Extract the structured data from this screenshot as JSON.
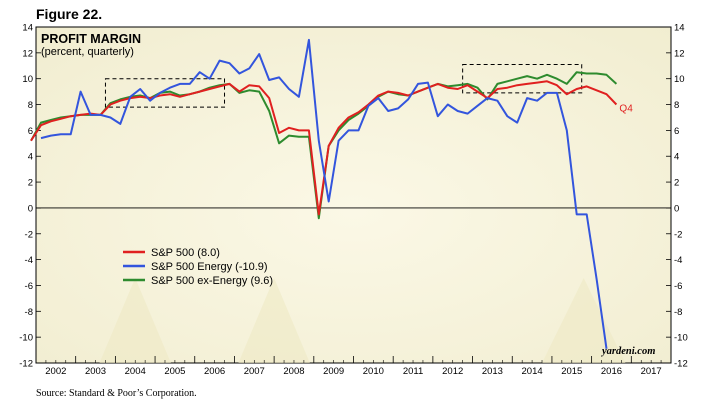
{
  "figure_label": "Figure 22.",
  "source": "Source: Standard & Poor’s Corporation.",
  "credit": "yardeni.com",
  "chart_data": {
    "type": "line",
    "title": "PROFIT MARGIN",
    "subtitle": "(percent, quarterly)",
    "xlim": [
      2002,
      2018
    ],
    "ylim": [
      -12,
      14
    ],
    "y_ticks": [
      -12,
      -10,
      -8,
      -6,
      -4,
      -2,
      0,
      2,
      4,
      6,
      8,
      10,
      12,
      14
    ],
    "x_tick_labels": [
      "2002",
      "2003",
      "2004",
      "2005",
      "2006",
      "2007",
      "2008",
      "2009",
      "2010",
      "2011",
      "2012",
      "2013",
      "2014",
      "2015",
      "2016",
      "2017"
    ],
    "grid": false,
    "zero_line": true,
    "legend_position": "lower-left",
    "end_label": "Q4",
    "series": [
      {
        "name": "S&P 500 (8.0)",
        "color": "#e02020",
        "start": 2001.875,
        "values": [
          5.2,
          6.4,
          6.7,
          6.9,
          7.1,
          7.2,
          7.3,
          7.2,
          8.0,
          8.3,
          8.5,
          8.6,
          8.5,
          8.7,
          8.8,
          8.6,
          8.8,
          9.0,
          9.2,
          9.4,
          9.6,
          9.0,
          9.5,
          9.4,
          8.5,
          5.8,
          6.2,
          6.0,
          6.0,
          -0.5,
          4.8,
          6.2,
          7.0,
          7.4,
          8.0,
          8.7,
          9.0,
          8.9,
          8.7,
          9.0,
          9.3,
          9.6,
          9.3,
          9.2,
          9.5,
          9.0,
          8.5,
          9.2,
          9.3,
          9.5,
          9.6,
          9.7,
          9.8,
          9.5,
          8.8,
          9.2,
          9.4,
          9.1,
          8.8,
          8.0
        ]
      },
      {
        "name": "S&P 500 Energy (-10.9)",
        "color": "#3355dd",
        "start": 2002.125,
        "values": [
          5.4,
          5.6,
          5.7,
          5.7,
          9.0,
          7.2,
          7.2,
          7.0,
          6.5,
          8.6,
          9.2,
          8.3,
          8.9,
          9.3,
          9.6,
          9.6,
          10.5,
          10.0,
          11.4,
          11.2,
          10.4,
          10.8,
          11.9,
          9.9,
          10.1,
          9.2,
          8.6,
          13.0,
          5.2,
          0.5,
          5.2,
          6.0,
          6.0,
          7.9,
          8.5,
          7.5,
          7.7,
          8.4,
          9.6,
          9.7,
          7.1,
          8.0,
          7.5,
          7.3,
          7.9,
          8.5,
          8.3,
          7.1,
          6.6,
          8.5,
          8.3,
          8.9,
          8.9,
          6.0,
          -0.5,
          -0.5,
          -5.5,
          -10.9
        ]
      },
      {
        "name": "S&P 500 ex-Energy (9.6)",
        "color": "#2e8b2e",
        "start": 2001.875,
        "values": [
          5.2,
          6.6,
          6.8,
          7.0,
          7.1,
          7.2,
          7.2,
          7.2,
          8.1,
          8.4,
          8.6,
          8.7,
          8.5,
          8.9,
          9.0,
          8.7,
          8.8,
          9.0,
          9.3,
          9.5,
          9.6,
          8.9,
          9.1,
          9.0,
          7.5,
          5.0,
          5.6,
          5.5,
          5.5,
          -0.8,
          4.8,
          6.0,
          6.8,
          7.3,
          7.9,
          8.6,
          9.0,
          8.8,
          8.7,
          9.0,
          9.3,
          9.6,
          9.4,
          9.5,
          9.6,
          9.3,
          8.4,
          9.6,
          9.8,
          10.0,
          10.2,
          10.0,
          10.3,
          10.0,
          9.6,
          10.5,
          10.4,
          10.4,
          10.3,
          9.6
        ]
      }
    ]
  }
}
